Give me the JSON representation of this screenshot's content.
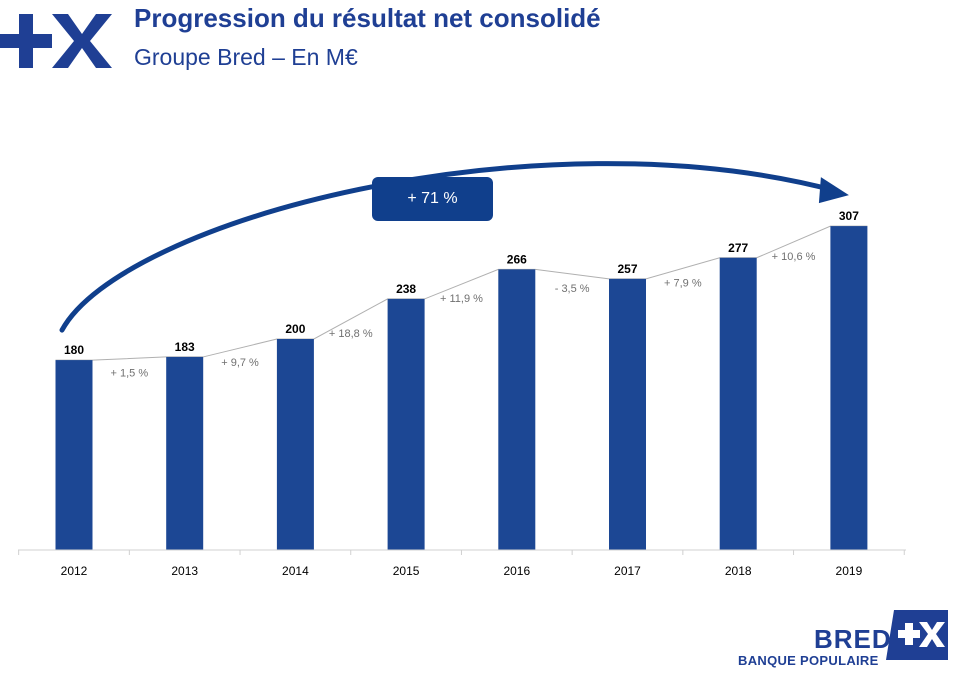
{
  "header": {
    "title": "Progression du résultat net consolidé",
    "subtitle": "Groupe Bred – En M€"
  },
  "callout": {
    "label": "+ 71 %"
  },
  "brand": {
    "name": "BRED",
    "subtitle": "BANQUE POPULAIRE"
  },
  "colors": {
    "accent": "#1f3f94",
    "bar": "#1c4794",
    "callout": "#103f8c",
    "growth_label": "#707070",
    "line": "#b0b0b0"
  },
  "chart_data": {
    "type": "bar",
    "title": "Progression du résultat net consolidé",
    "subtitle": "Groupe Bred – En M€",
    "categories": [
      "2012",
      "2013",
      "2014",
      "2015",
      "2016",
      "2017",
      "2018",
      "2019"
    ],
    "values": [
      180,
      183,
      200,
      238,
      266,
      257,
      277,
      307
    ],
    "value_labels": [
      "180",
      "183",
      "200",
      "238",
      "266",
      "257",
      "277",
      "307"
    ],
    "growth_labels": [
      "+ 1,5 %",
      "+ 9,7 %",
      "+ 18,8 %",
      "+ 11,9 %",
      "- 3,5 %",
      "+ 7,9 %",
      "+ 10,6 %"
    ],
    "total_growth_label": "+ 71 %",
    "xlabel": "",
    "ylabel": "",
    "ylim": [
      0,
      307
    ],
    "grid": false,
    "legend": "none"
  }
}
